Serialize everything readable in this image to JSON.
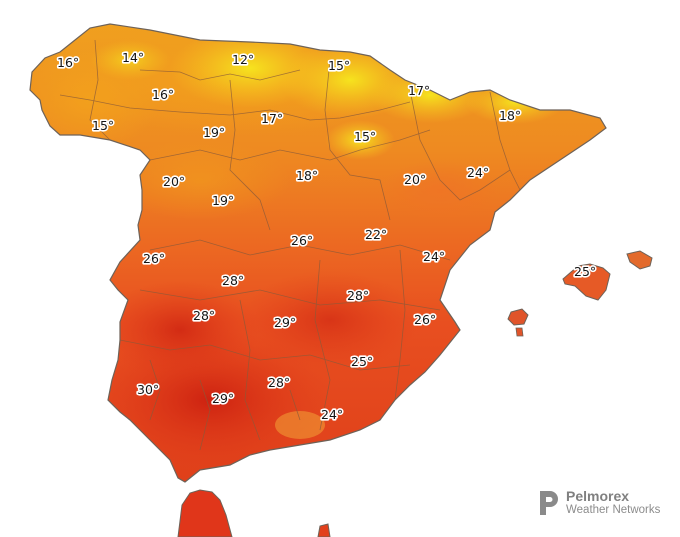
{
  "map": {
    "colors": {
      "coolest": "#f7e01e",
      "cool": "#f4a91a",
      "mild": "#ef8a20",
      "warm": "#ec5e22",
      "hot": "#e13c1c",
      "hottest": "#cf2612",
      "border": "#7a6a5a",
      "region_line": "#8a5a3a"
    },
    "labels": [
      {
        "id": "galicia-nw",
        "text": "16°"
      },
      {
        "id": "asturias-w",
        "text": "14°"
      },
      {
        "id": "cantabria",
        "text": "12°"
      },
      {
        "id": "basque",
        "text": "15°"
      },
      {
        "id": "leon-n",
        "text": "16°"
      },
      {
        "id": "galicia-s",
        "text": "15°"
      },
      {
        "id": "leon",
        "text": "19°"
      },
      {
        "id": "burgos",
        "text": "17°"
      },
      {
        "id": "navarra",
        "text": "17°"
      },
      {
        "id": "pyrenees",
        "text": "18°"
      },
      {
        "id": "soria",
        "text": "15°"
      },
      {
        "id": "zamora",
        "text": "20°"
      },
      {
        "id": "valladolid",
        "text": "18°"
      },
      {
        "id": "zaragoza",
        "text": "20°"
      },
      {
        "id": "tarragona",
        "text": "24°"
      },
      {
        "id": "salamanca",
        "text": "19°"
      },
      {
        "id": "madrid",
        "text": "26°"
      },
      {
        "id": "teruel",
        "text": "22°"
      },
      {
        "id": "caceres-w",
        "text": "26°"
      },
      {
        "id": "castellon",
        "text": "24°"
      },
      {
        "id": "caceres",
        "text": "28°"
      },
      {
        "id": "cuenca",
        "text": "28°"
      },
      {
        "id": "mallorca",
        "text": "25°"
      },
      {
        "id": "badajoz",
        "text": "28°"
      },
      {
        "id": "ciudad-real",
        "text": "29°"
      },
      {
        "id": "valencia",
        "text": "26°"
      },
      {
        "id": "murcia",
        "text": "25°"
      },
      {
        "id": "huelva",
        "text": "30°"
      },
      {
        "id": "seville",
        "text": "29°"
      },
      {
        "id": "jaen",
        "text": "28°"
      },
      {
        "id": "granada",
        "text": "24°"
      }
    ]
  },
  "brand": {
    "name": "Pelmorex",
    "subtitle": "Weather Networks",
    "logo_icon": "pelmorex-p-logo-icon",
    "color": "#8a8a8a"
  }
}
